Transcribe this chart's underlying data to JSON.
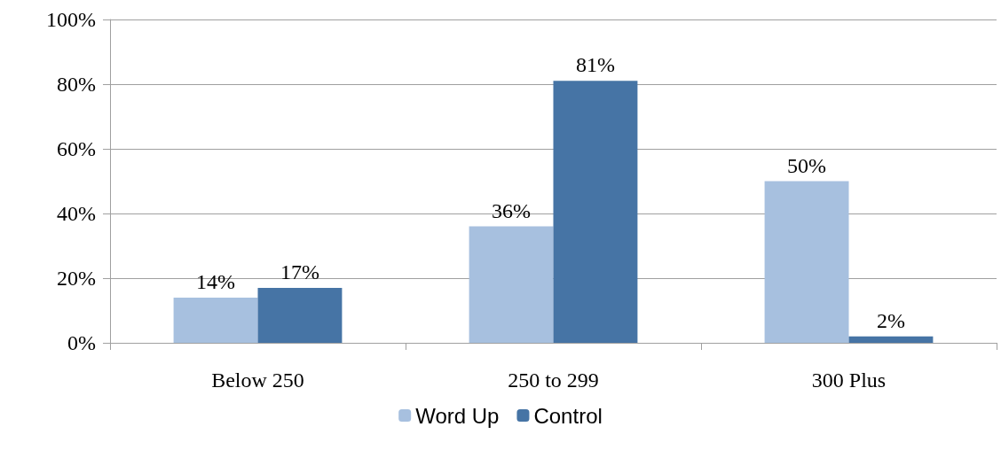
{
  "chart_data": {
    "type": "bar",
    "categories": [
      "Below 250",
      "250 to 299",
      "300 Plus"
    ],
    "series": [
      {
        "name": "Word Up",
        "color": "#a7c0df",
        "values": [
          14,
          36,
          50
        ],
        "value_labels": [
          "14%",
          "36%",
          "50%"
        ]
      },
      {
        "name": "Control",
        "color": "#4674a5",
        "values": [
          17,
          81,
          2
        ],
        "value_labels": [
          "17%",
          "81%",
          "2%"
        ]
      }
    ],
    "ylim": [
      0,
      100
    ],
    "yticks": [
      {
        "value": 0,
        "label": "0%"
      },
      {
        "value": 20,
        "label": "20%"
      },
      {
        "value": 40,
        "label": "40%"
      },
      {
        "value": 60,
        "label": "60%"
      },
      {
        "value": 80,
        "label": "80%"
      },
      {
        "value": 100,
        "label": "100%"
      }
    ],
    "grid": "y",
    "legend": "bottom"
  }
}
